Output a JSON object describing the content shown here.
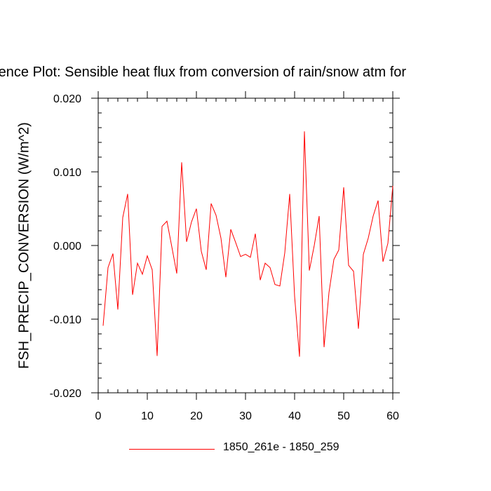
{
  "chart_data": {
    "type": "line",
    "title": "Difference Plot: Sensible heat flux from conversion of rain/snow atm forcing",
    "title_visible": "rence Plot: Sensible heat flux from conversion of rain/snow atm for",
    "xlabel": "",
    "ylabel": "FSH_PRECIP_CONVERSION  (W/m^2)",
    "xlim": [
      0,
      60
    ],
    "ylim": [
      -0.02,
      0.02
    ],
    "x_ticks": [
      "0",
      "10",
      "20",
      "30",
      "40",
      "50",
      "60"
    ],
    "y_ticks": [
      "-0.020",
      "-0.010",
      "0.000",
      "0.010",
      "0.020"
    ],
    "legend_position": "bottom",
    "series": [
      {
        "name": "1850_261e - 1850_259",
        "color": "#ff0000",
        "x": [
          1,
          2,
          3,
          4,
          5,
          6,
          7,
          8,
          9,
          10,
          11,
          12,
          13,
          14,
          15,
          16,
          17,
          18,
          19,
          20,
          21,
          22,
          23,
          24,
          25,
          26,
          27,
          28,
          29,
          30,
          31,
          32,
          33,
          34,
          35,
          36,
          37,
          38,
          39,
          40,
          41,
          42,
          43,
          44,
          45,
          46,
          47,
          48,
          49,
          50,
          51,
          52,
          53,
          54,
          55,
          56,
          57,
          58,
          59,
          60
        ],
        "values": [
          -0.0109,
          -0.003,
          -0.0011,
          -0.0087,
          0.0038,
          0.007,
          -0.0067,
          -0.0024,
          -0.0039,
          -0.0014,
          -0.0033,
          -0.015,
          0.0026,
          0.0033,
          -0.0002,
          -0.0038,
          0.0113,
          0.0005,
          0.0032,
          0.005,
          -0.0008,
          -0.0033,
          0.0057,
          0.0041,
          0.001,
          -0.0043,
          0.0022,
          0.0004,
          -0.0015,
          -0.0012,
          -0.0016,
          0.0016,
          -0.0047,
          -0.0024,
          -0.003,
          -0.0053,
          -0.0055,
          -0.001,
          0.007,
          -0.0069,
          -0.0151,
          0.0155,
          -0.0034,
          0.0,
          0.004,
          -0.0138,
          -0.0064,
          -0.0019,
          -0.0006,
          0.0079,
          -0.0027,
          -0.0035,
          -0.0113,
          -0.0012,
          0.001,
          0.004,
          0.0061,
          -0.0022,
          0.0003,
          0.0081
        ]
      }
    ]
  }
}
